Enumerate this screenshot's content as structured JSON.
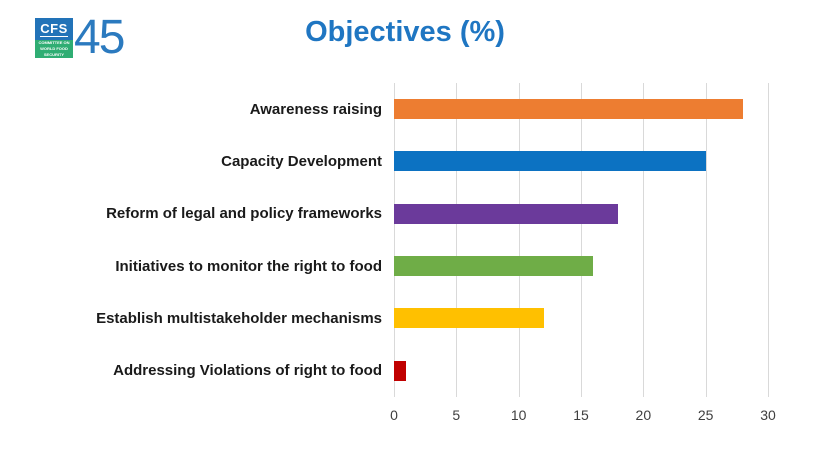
{
  "logo": {
    "acronym": "CFS",
    "subtext": "COMMITTEE ON WORLD FOOD SECURITY",
    "session_number": "45",
    "blue_color": "#2273B8",
    "green_color": "#2FAD73",
    "number_color": "#2B7ABF"
  },
  "header": {
    "title": "Objectives (%)",
    "title_color": "#1F76C2"
  },
  "chart_data": {
    "type": "bar",
    "orientation": "horizontal",
    "title": "Objectives (%)",
    "categories": [
      "Awareness raising",
      "Capacity Development",
      "Reform of legal and policy frameworks",
      "Initiatives to monitor the right to food",
      "Establish multistakeholder mechanisms",
      "Addressing Violations of right to food"
    ],
    "values": [
      28,
      25,
      18,
      16,
      12,
      1
    ],
    "bar_colors": [
      "#ED7D31",
      "#0C72C2",
      "#6B3A9B",
      "#6FAD47",
      "#FFC000",
      "#C00000"
    ],
    "x_ticks": [
      0,
      5,
      10,
      15,
      20,
      25,
      30
    ],
    "xlim": [
      0,
      30
    ],
    "xlabel": "",
    "ylabel": "",
    "grid": "vertical",
    "gridline_color": "#D9D9D9",
    "tick_label_color": "#3f3f3f",
    "category_label_color": "#1a1a1a",
    "legend": "none",
    "background": "#ffffff"
  }
}
